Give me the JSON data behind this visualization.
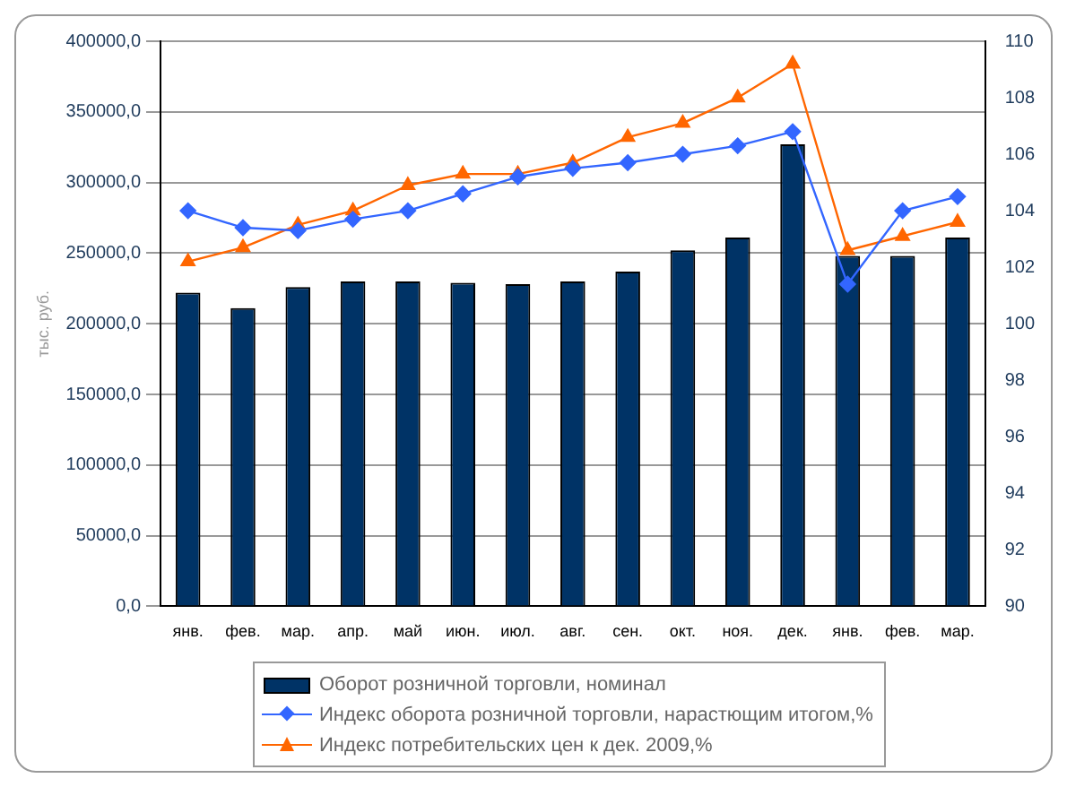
{
  "chart_data": {
    "type": "bar",
    "ylabel": "тыс. руб.",
    "categories": [
      "янв.",
      "фев.",
      "мар.",
      "апр.",
      "май",
      "июн.",
      "июл.",
      "авг.",
      "сен.",
      "окт.",
      "ноя.",
      "дек.",
      "янв.",
      "фев.",
      "мар."
    ],
    "series": [
      {
        "name": "Оборот розничной торговли, номинал",
        "color": "#003366",
        "values": [
          222000,
          211000,
          226000,
          230000,
          230000,
          229000,
          228000,
          230000,
          237000,
          252000,
          261000,
          327000,
          248000,
          248000,
          261000
        ]
      },
      {
        "name": "Индекс оборота розничной торговли, нарастющим итогом,%",
        "type": "line",
        "axis": "y2",
        "color": "#3366ff",
        "marker": "diamond",
        "values": [
          104.0,
          103.4,
          103.3,
          103.7,
          104.0,
          104.6,
          105.2,
          105.5,
          105.7,
          106.0,
          106.3,
          106.8,
          101.4,
          104.0,
          104.5
        ]
      },
      {
        "name": "Индекс потребительских цен к дек. 2009,%",
        "type": "line",
        "axis": "y2",
        "color": "#ff6600",
        "marker": "triangle",
        "values": [
          102.2,
          102.7,
          103.5,
          104.0,
          104.9,
          105.3,
          105.3,
          105.7,
          106.6,
          107.1,
          108.0,
          109.2,
          102.6,
          103.1,
          103.6
        ]
      }
    ],
    "ylim": [
      0,
      400000
    ],
    "yticks": [
      {
        "value": 0,
        "label": "0,0"
      },
      {
        "value": 50000,
        "label": "50000,0"
      },
      {
        "value": 100000,
        "label": "100000,0"
      },
      {
        "value": 150000,
        "label": "150000,0"
      },
      {
        "value": 200000,
        "label": "200000,0"
      },
      {
        "value": 250000,
        "label": "250000,0"
      },
      {
        "value": 300000,
        "label": "300000,0"
      },
      {
        "value": 350000,
        "label": "350000,0"
      },
      {
        "value": 400000,
        "label": "400000,0"
      }
    ],
    "y2lim": [
      90,
      110
    ],
    "y2ticks": [
      90,
      92,
      94,
      96,
      98,
      100,
      102,
      104,
      106,
      108,
      110
    ],
    "grid": "y",
    "legend": "bottom"
  }
}
